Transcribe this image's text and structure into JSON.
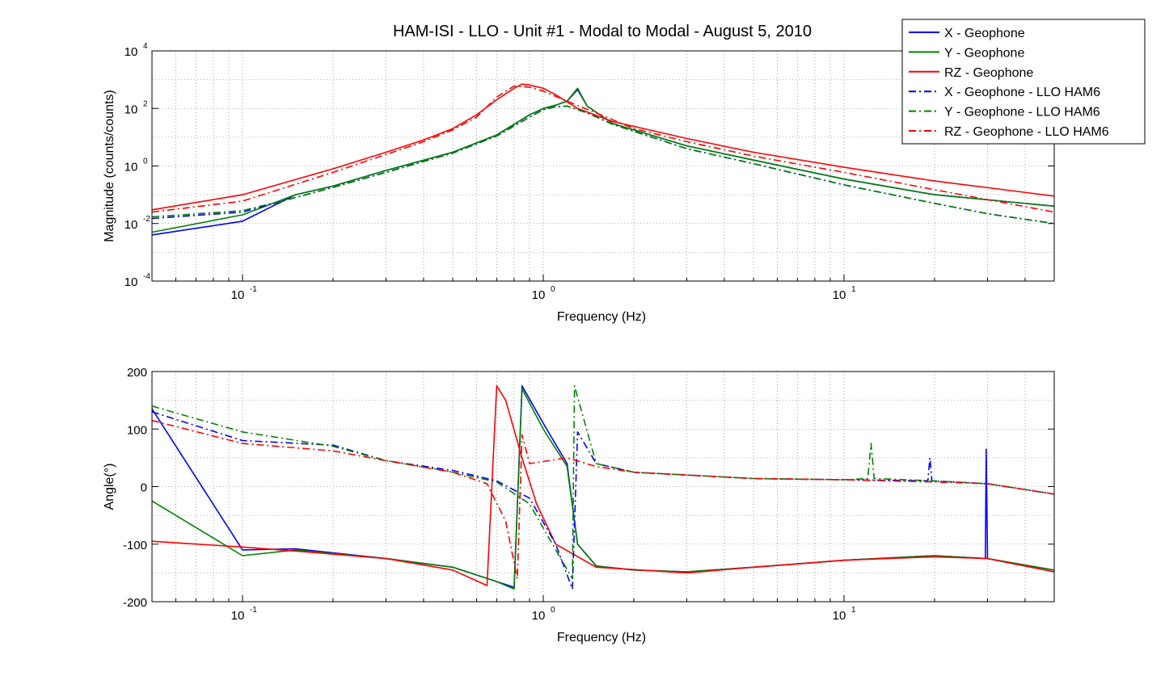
{
  "title": "HAM-ISI - LLO - Unit #1 - Modal to Modal - August 5, 2010",
  "legend": {
    "placement": "top-right",
    "entries": [
      {
        "label": "X - Geophone",
        "color": "#0000ff",
        "style": "solid"
      },
      {
        "label": "Y - Geophone",
        "color": "#008000",
        "style": "solid"
      },
      {
        "label": "RZ - Geophone",
        "color": "#ff0000",
        "style": "solid"
      },
      {
        "label": "X - Geophone - LLO HAM6",
        "color": "#0000ff",
        "style": "dashdot"
      },
      {
        "label": "Y - Geophone - LLO HAM6",
        "color": "#008000",
        "style": "dashdot"
      },
      {
        "label": "RZ - Geophone - LLO HAM6",
        "color": "#ff0000",
        "style": "dashdot"
      }
    ]
  },
  "chart_data": [
    {
      "type": "line",
      "xscale": "log",
      "yscale": "log",
      "xlabel": "Frequency (Hz)",
      "ylabel": "Magnitude (counts/counts)",
      "xlim": [
        0.05,
        50
      ],
      "ylim": [
        0.0001,
        10000
      ],
      "grid": true,
      "xticks": [
        {
          "value": 0.1,
          "base": "10",
          "exp": "-1"
        },
        {
          "value": 1,
          "base": "10",
          "exp": "0"
        },
        {
          "value": 10,
          "base": "10",
          "exp": "1"
        }
      ],
      "yticks": [
        {
          "value": 0.0001,
          "base": "10",
          "exp": "-4"
        },
        {
          "value": 0.01,
          "base": "10",
          "exp": "-2"
        },
        {
          "value": 1,
          "base": "10",
          "exp": "0"
        },
        {
          "value": 100,
          "base": "10",
          "exp": "2"
        },
        {
          "value": 10000,
          "base": "10",
          "exp": "4"
        }
      ],
      "series": [
        {
          "name": "X - Geophone",
          "color": "#0000ff",
          "dash": "solid",
          "points": [
            [
              0.05,
              0.004
            ],
            [
              0.1,
              0.012
            ],
            [
              0.15,
              0.1
            ],
            [
              0.2,
              0.2
            ],
            [
              0.3,
              0.7
            ],
            [
              0.5,
              3
            ],
            [
              0.7,
              12
            ],
            [
              0.9,
              60
            ],
            [
              1.0,
              100
            ],
            [
              1.1,
              130
            ],
            [
              1.2,
              180
            ],
            [
              1.3,
              450
            ],
            [
              1.4,
              120
            ],
            [
              1.7,
              30
            ],
            [
              3,
              5
            ],
            [
              5,
              1.6
            ],
            [
              10,
              0.35
            ],
            [
              20,
              0.1
            ],
            [
              50,
              0.04
            ]
          ]
        },
        {
          "name": "Y - Geophone",
          "color": "#008000",
          "dash": "solid",
          "points": [
            [
              0.05,
              0.005
            ],
            [
              0.1,
              0.02
            ],
            [
              0.15,
              0.1
            ],
            [
              0.2,
              0.2
            ],
            [
              0.3,
              0.7
            ],
            [
              0.5,
              3
            ],
            [
              0.7,
              12
            ],
            [
              0.9,
              60
            ],
            [
              1.0,
              100
            ],
            [
              1.1,
              130
            ],
            [
              1.2,
              180
            ],
            [
              1.3,
              500
            ],
            [
              1.4,
              120
            ],
            [
              1.7,
              30
            ],
            [
              3,
              5
            ],
            [
              5,
              1.6
            ],
            [
              10,
              0.35
            ],
            [
              20,
              0.1
            ],
            [
              50,
              0.04
            ]
          ]
        },
        {
          "name": "RZ - Geophone",
          "color": "#ff0000",
          "dash": "solid",
          "points": [
            [
              0.05,
              0.03
            ],
            [
              0.1,
              0.1
            ],
            [
              0.2,
              0.8
            ],
            [
              0.3,
              3
            ],
            [
              0.4,
              8
            ],
            [
              0.5,
              20
            ],
            [
              0.6,
              60
            ],
            [
              0.7,
              200
            ],
            [
              0.8,
              500
            ],
            [
              0.85,
              700
            ],
            [
              0.9,
              650
            ],
            [
              1.0,
              500
            ],
            [
              1.1,
              300
            ],
            [
              1.3,
              100
            ],
            [
              1.7,
              35
            ],
            [
              3,
              9
            ],
            [
              5,
              3
            ],
            [
              10,
              0.9
            ],
            [
              20,
              0.3
            ],
            [
              50,
              0.09
            ]
          ]
        },
        {
          "name": "X - Geophone - LLO HAM6",
          "color": "#0000ff",
          "dash": "dashdot",
          "points": [
            [
              0.05,
              0.015
            ],
            [
              0.1,
              0.025
            ],
            [
              0.15,
              0.08
            ],
            [
              0.2,
              0.18
            ],
            [
              0.3,
              0.6
            ],
            [
              0.5,
              2.8
            ],
            [
              0.7,
              11
            ],
            [
              0.9,
              50
            ],
            [
              1.0,
              90
            ],
            [
              1.1,
              115
            ],
            [
              1.2,
              120
            ],
            [
              1.4,
              70
            ],
            [
              1.7,
              28
            ],
            [
              3,
              4
            ],
            [
              5,
              1.2
            ],
            [
              10,
              0.22
            ],
            [
              12,
              0.15
            ],
            [
              20,
              0.05
            ],
            [
              30,
              0.022
            ],
            [
              50,
              0.01
            ]
          ]
        },
        {
          "name": "Y - Geophone - LLO HAM6",
          "color": "#008000",
          "dash": "dashdot",
          "points": [
            [
              0.05,
              0.017
            ],
            [
              0.1,
              0.028
            ],
            [
              0.15,
              0.08
            ],
            [
              0.2,
              0.18
            ],
            [
              0.3,
              0.6
            ],
            [
              0.5,
              2.8
            ],
            [
              0.7,
              11
            ],
            [
              0.9,
              50
            ],
            [
              1.0,
              90
            ],
            [
              1.1,
              115
            ],
            [
              1.2,
              120
            ],
            [
              1.4,
              70
            ],
            [
              1.7,
              28
            ],
            [
              3,
              4
            ],
            [
              5,
              1.2
            ],
            [
              10,
              0.22
            ],
            [
              12,
              0.15
            ],
            [
              20,
              0.05
            ],
            [
              30,
              0.022
            ],
            [
              50,
              0.01
            ]
          ]
        },
        {
          "name": "RZ - Geophone - LLO HAM6",
          "color": "#ff0000",
          "dash": "dashdot",
          "points": [
            [
              0.05,
              0.025
            ],
            [
              0.1,
              0.06
            ],
            [
              0.2,
              0.6
            ],
            [
              0.3,
              2.5
            ],
            [
              0.4,
              7
            ],
            [
              0.5,
              18
            ],
            [
              0.6,
              50
            ],
            [
              0.7,
              250
            ],
            [
              0.8,
              600
            ],
            [
              0.9,
              550
            ],
            [
              1.0,
              400
            ],
            [
              1.2,
              180
            ],
            [
              1.5,
              70
            ],
            [
              2,
              20
            ],
            [
              3,
              7
            ],
            [
              5,
              2.2
            ],
            [
              10,
              0.6
            ],
            [
              20,
              0.15
            ],
            [
              50,
              0.025
            ]
          ]
        }
      ]
    },
    {
      "type": "line",
      "xscale": "log",
      "yscale": "linear",
      "xlabel": "Frequency (Hz)",
      "ylabel": "Angle(°)",
      "xlim": [
        0.05,
        50
      ],
      "ylim": [
        -200,
        200
      ],
      "grid": true,
      "xticks": [
        {
          "value": 0.1,
          "base": "10",
          "exp": "-1"
        },
        {
          "value": 1,
          "base": "10",
          "exp": "0"
        },
        {
          "value": 10,
          "base": "10",
          "exp": "1"
        }
      ],
      "yticks": [
        {
          "value": -200,
          "label": "-200"
        },
        {
          "value": -100,
          "label": "-100"
        },
        {
          "value": 0,
          "label": "0"
        },
        {
          "value": 100,
          "label": "100"
        },
        {
          "value": 200,
          "label": "200"
        }
      ],
      "series": [
        {
          "name": "X - Geophone",
          "color": "#0000ff",
          "dash": "solid",
          "points": [
            [
              0.05,
              135
            ],
            [
              0.1,
              -110
            ],
            [
              0.15,
              -108
            ],
            [
              0.3,
              -125
            ],
            [
              0.5,
              -140
            ],
            [
              0.7,
              -165
            ],
            [
              0.8,
              -175
            ],
            [
              0.85,
              175
            ],
            [
              1.0,
              110
            ],
            [
              1.2,
              40
            ],
            [
              1.3,
              -100
            ],
            [
              1.5,
              -138
            ],
            [
              2,
              -145
            ],
            [
              3,
              -148
            ],
            [
              5,
              -140
            ],
            [
              10,
              -128
            ],
            [
              20,
              -120
            ],
            [
              29.5,
              -125
            ],
            [
              29.7,
              65
            ],
            [
              30,
              -125
            ],
            [
              50,
              -148
            ]
          ]
        },
        {
          "name": "Y - Geophone",
          "color": "#008000",
          "dash": "solid",
          "points": [
            [
              0.05,
              -25
            ],
            [
              0.1,
              -120
            ],
            [
              0.15,
              -110
            ],
            [
              0.3,
              -125
            ],
            [
              0.5,
              -140
            ],
            [
              0.7,
              -165
            ],
            [
              0.8,
              -178
            ],
            [
              0.85,
              170
            ],
            [
              1.0,
              100
            ],
            [
              1.2,
              35
            ],
            [
              1.3,
              -100
            ],
            [
              1.5,
              -138
            ],
            [
              2,
              -145
            ],
            [
              3,
              -148
            ],
            [
              5,
              -140
            ],
            [
              10,
              -128
            ],
            [
              20,
              -120
            ],
            [
              30,
              -125
            ],
            [
              50,
              -145
            ]
          ]
        },
        {
          "name": "RZ - Geophone",
          "color": "#ff0000",
          "dash": "solid",
          "points": [
            [
              0.05,
              -95
            ],
            [
              0.1,
              -105
            ],
            [
              0.15,
              -112
            ],
            [
              0.3,
              -125
            ],
            [
              0.5,
              -145
            ],
            [
              0.65,
              -172
            ],
            [
              0.7,
              175
            ],
            [
              0.75,
              150
            ],
            [
              0.85,
              50
            ],
            [
              0.95,
              -30
            ],
            [
              1.1,
              -100
            ],
            [
              1.5,
              -140
            ],
            [
              3,
              -150
            ],
            [
              5,
              -140
            ],
            [
              10,
              -128
            ],
            [
              20,
              -122
            ],
            [
              30,
              -125
            ],
            [
              50,
              -148
            ]
          ]
        },
        {
          "name": "X - Geophone - LLO HAM6",
          "color": "#0000ff",
          "dash": "dashdot",
          "points": [
            [
              0.05,
              130
            ],
            [
              0.1,
              80
            ],
            [
              0.2,
              72
            ],
            [
              0.3,
              45
            ],
            [
              0.5,
              28
            ],
            [
              0.7,
              10
            ],
            [
              0.9,
              -20
            ],
            [
              1.1,
              -100
            ],
            [
              1.25,
              -178
            ],
            [
              1.3,
              95
            ],
            [
              1.5,
              40
            ],
            [
              2,
              25
            ],
            [
              5,
              14
            ],
            [
              10,
              12
            ],
            [
              19,
              10
            ],
            [
              19.3,
              50
            ],
            [
              19.6,
              10
            ],
            [
              30,
              5
            ],
            [
              50,
              -13
            ]
          ]
        },
        {
          "name": "Y - Geophone - LLO HAM6",
          "color": "#008000",
          "dash": "dashdot",
          "points": [
            [
              0.05,
              140
            ],
            [
              0.1,
              95
            ],
            [
              0.2,
              70
            ],
            [
              0.3,
              45
            ],
            [
              0.5,
              25
            ],
            [
              0.7,
              8
            ],
            [
              0.9,
              -30
            ],
            [
              1.1,
              -110
            ],
            [
              1.25,
              -160
            ],
            [
              1.27,
              175
            ],
            [
              1.5,
              40
            ],
            [
              2,
              25
            ],
            [
              5,
              14
            ],
            [
              10,
              12
            ],
            [
              12,
              14
            ],
            [
              12.3,
              75
            ],
            [
              12.6,
              14
            ],
            [
              20,
              10
            ],
            [
              30,
              5
            ],
            [
              50,
              -13
            ]
          ]
        },
        {
          "name": "RZ - Geophone - LLO HAM6",
          "color": "#ff0000",
          "dash": "dashdot",
          "points": [
            [
              0.05,
              115
            ],
            [
              0.1,
              75
            ],
            [
              0.2,
              62
            ],
            [
              0.3,
              45
            ],
            [
              0.5,
              25
            ],
            [
              0.65,
              5
            ],
            [
              0.75,
              -60
            ],
            [
              0.82,
              -160
            ],
            [
              0.85,
              90
            ],
            [
              0.9,
              40
            ],
            [
              1.2,
              50
            ],
            [
              1.5,
              35
            ],
            [
              2,
              25
            ],
            [
              5,
              14
            ],
            [
              10,
              12
            ],
            [
              20,
              8
            ],
            [
              30,
              5
            ],
            [
              50,
              -13
            ]
          ]
        }
      ]
    }
  ]
}
